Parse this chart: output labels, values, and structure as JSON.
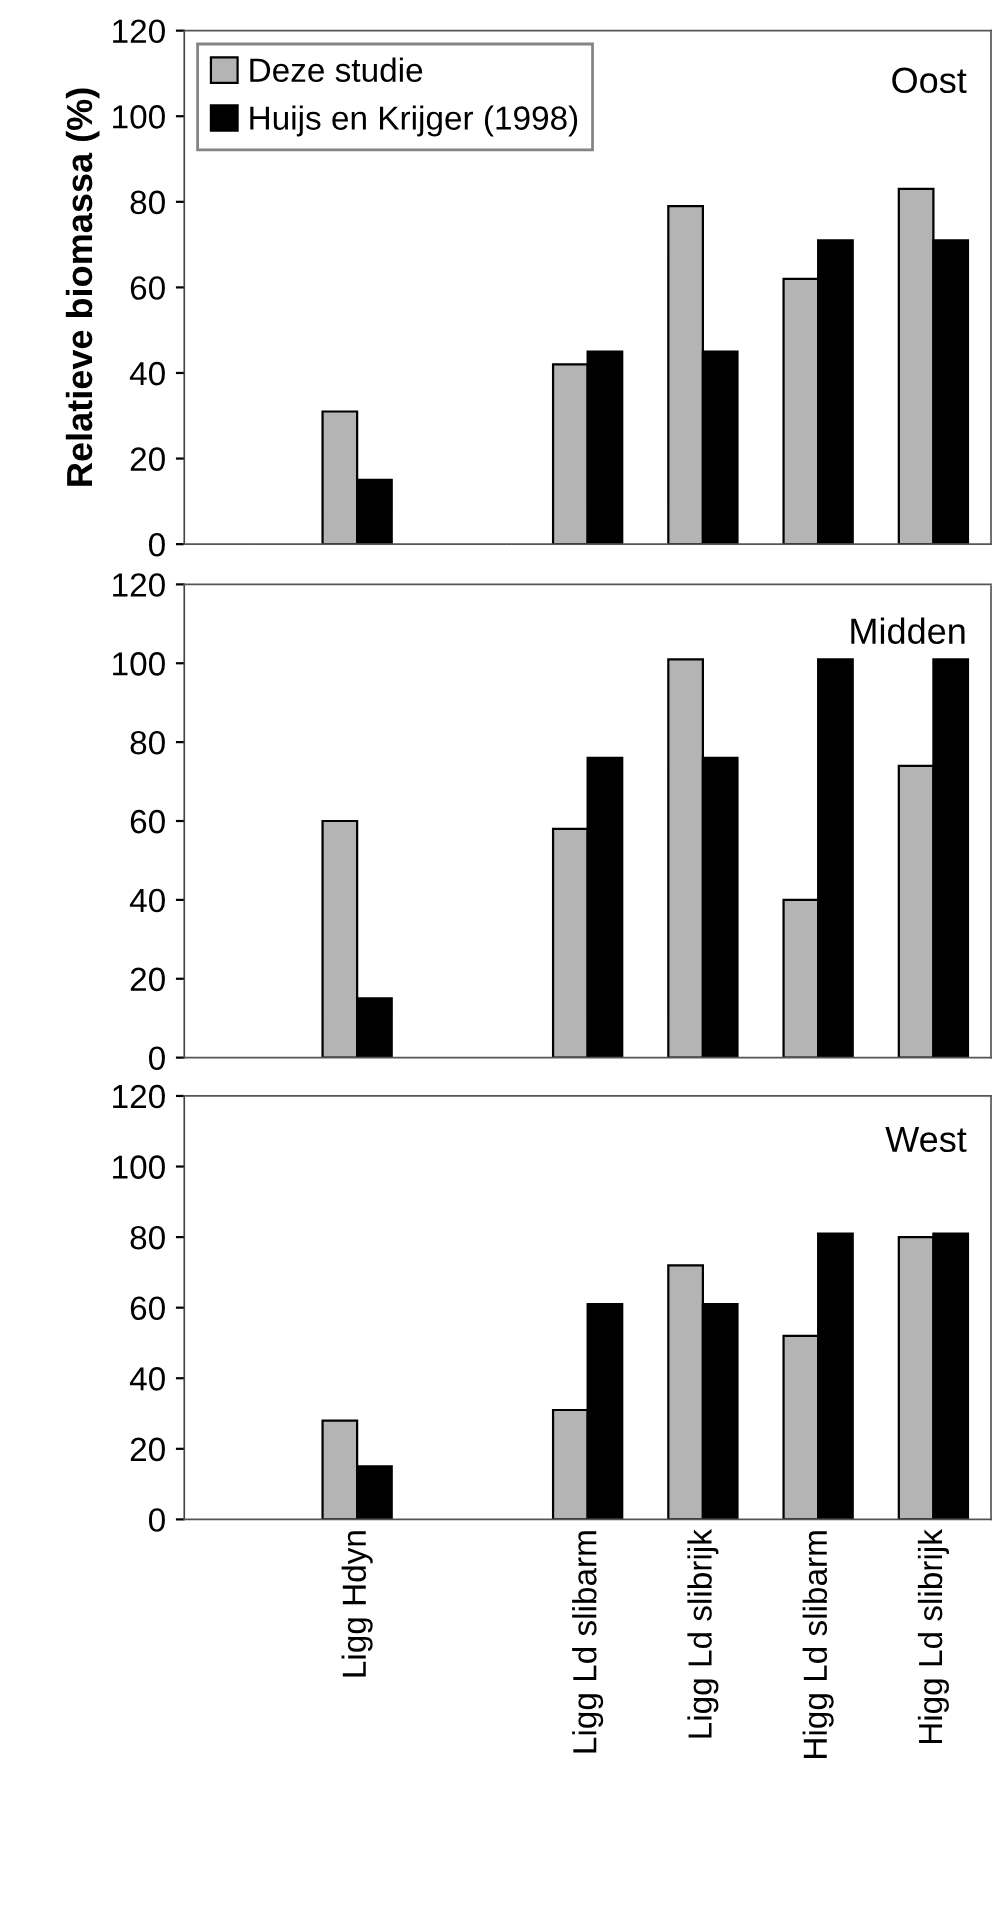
{
  "chart_data": [
    {
      "type": "bar",
      "title": "Oost",
      "ylabel": "Relatieve biomassa (%)",
      "ylim": [
        0,
        120
      ],
      "yticks": [
        0,
        20,
        40,
        60,
        80,
        100,
        120
      ],
      "legend": "top left",
      "tick_labels": "y",
      "series": [
        {
          "name": "Deze studie",
          "color": "#b4b4b4",
          "values": [
            null,
            31,
            null,
            42,
            79,
            62,
            83
          ]
        },
        {
          "name": "Huijs en Krijger (1998)",
          "color": "#000000",
          "values": [
            null,
            15,
            null,
            45,
            45,
            71,
            71
          ]
        }
      ]
    },
    {
      "type": "bar",
      "title": "Midden",
      "ylim": [
        0,
        120
      ],
      "yticks": [
        0,
        20,
        40,
        60,
        80,
        100,
        120
      ],
      "tick_labels": "y",
      "series": [
        {
          "color": "#b4b4b4",
          "values": [
            null,
            60,
            null,
            58,
            101,
            40,
            74
          ]
        },
        {
          "color": "#000000",
          "values": [
            null,
            15,
            null,
            76,
            76,
            101,
            101
          ]
        }
      ]
    },
    {
      "type": "bar",
      "title": "West",
      "categories": [
        null,
        "Ligg Hdyn",
        null,
        "Ligg Ld slibarm",
        "Ligg Ld slibrijk",
        "Higg Ld slibarm",
        "Higg Ld slibrijk"
      ],
      "ylim": [
        0,
        120
      ],
      "yticks": [
        0,
        20,
        40,
        60,
        80,
        100,
        120
      ],
      "series": [
        {
          "color": "#b4b4b4",
          "values": [
            null,
            28,
            null,
            31,
            72,
            52,
            80
          ]
        },
        {
          "color": "#000000",
          "values": [
            null,
            15,
            null,
            61,
            61,
            81,
            81
          ]
        }
      ]
    }
  ]
}
